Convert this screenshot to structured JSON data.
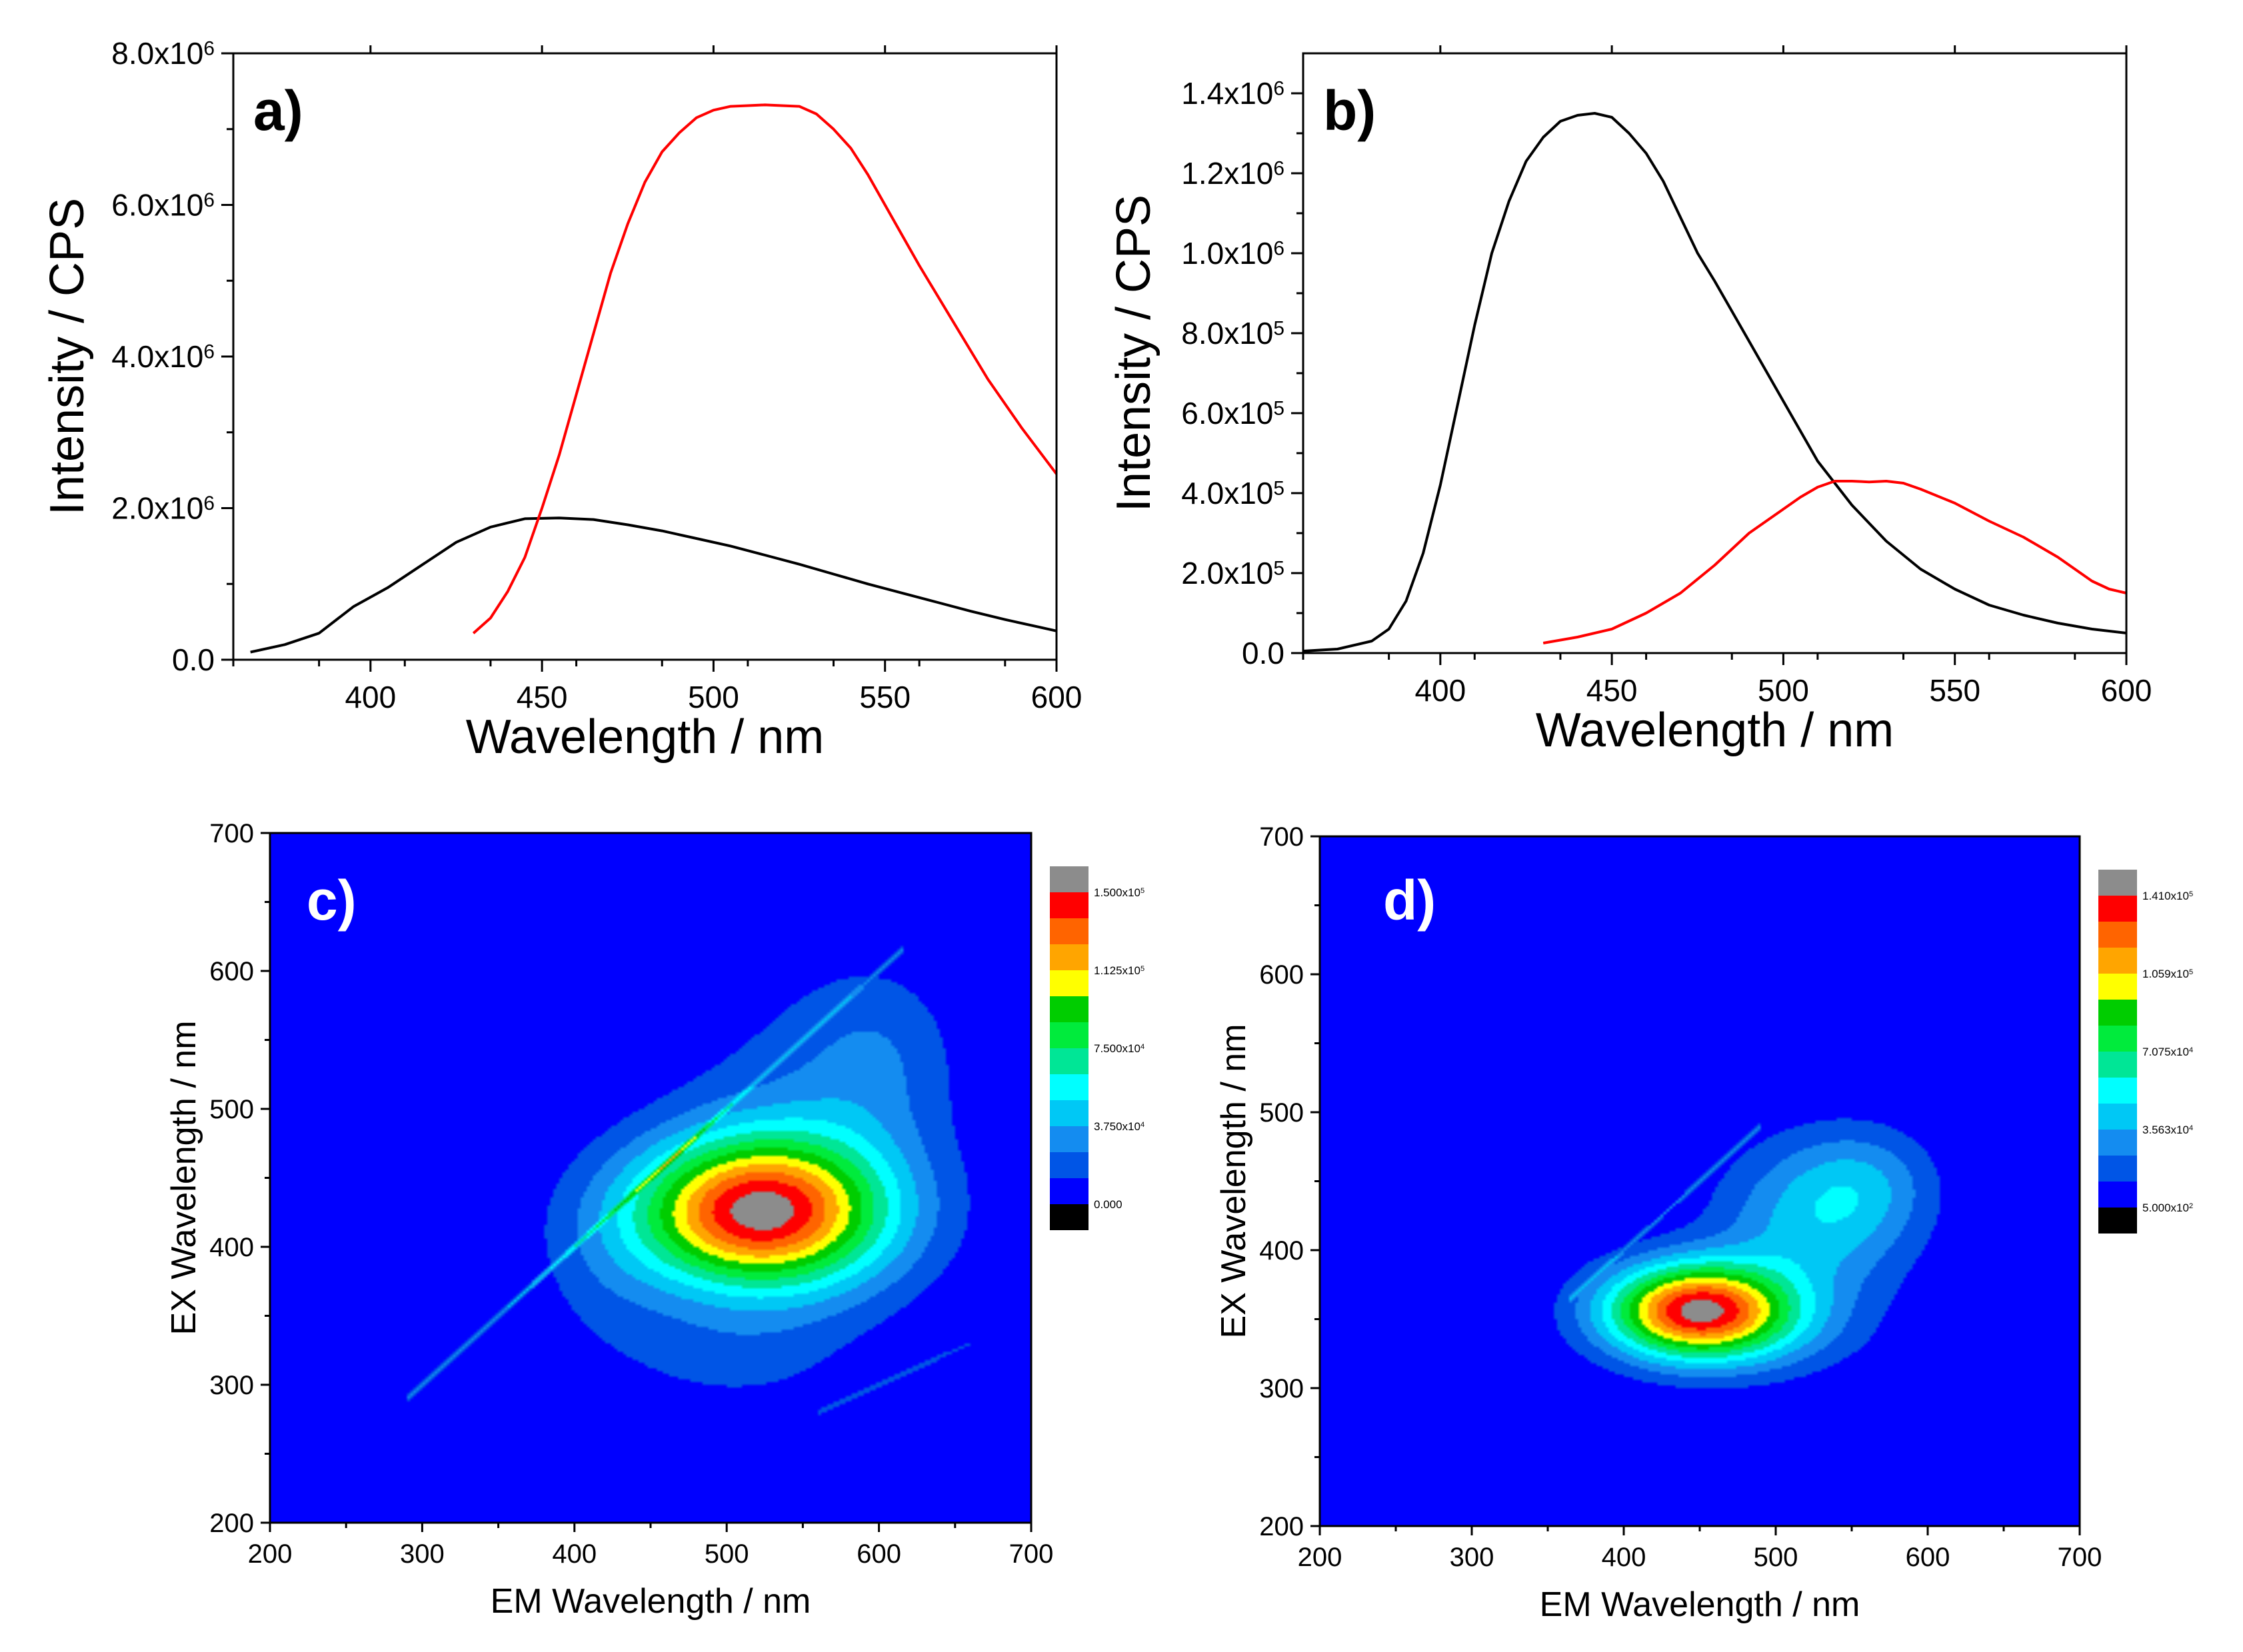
{
  "chart_data": [
    {
      "panel_label": "a)",
      "type": "line",
      "xlabel": "Wavelength / nm",
      "ylabel": "Intensity / CPS",
      "xlim": [
        360,
        600
      ],
      "ylim": [
        0,
        8000000
      ],
      "xticks": [
        400,
        450,
        500,
        550,
        600
      ],
      "xtick_labels": [
        "400",
        "450",
        "500",
        "550",
        "600"
      ],
      "yticks": [
        0,
        2000000,
        4000000,
        6000000,
        8000000
      ],
      "ytick_labels": [
        {
          "base": "0.0",
          "exp": ""
        },
        {
          "base": "2.0x10",
          "exp": "6"
        },
        {
          "base": "4.0x10",
          "exp": "6"
        },
        {
          "base": "6.0x10",
          "exp": "6"
        },
        {
          "base": "8.0x10",
          "exp": "6"
        }
      ],
      "series": [
        {
          "name": "black",
          "color": "#000000",
          "x": [
            365,
            375,
            385,
            395,
            405,
            415,
            425,
            435,
            445,
            455,
            465,
            475,
            485,
            495,
            505,
            515,
            525,
            535,
            545,
            555,
            565,
            575,
            585,
            595,
            600
          ],
          "y": [
            100000,
            200000,
            350000,
            700000,
            950000,
            1250000,
            1550000,
            1750000,
            1860000,
            1870000,
            1850000,
            1780000,
            1700000,
            1600000,
            1500000,
            1380000,
            1260000,
            1130000,
            1000000,
            880000,
            760000,
            640000,
            530000,
            430000,
            380000
          ]
        },
        {
          "name": "red",
          "color": "#ff0000",
          "x": [
            430,
            435,
            440,
            445,
            450,
            455,
            460,
            465,
            470,
            475,
            480,
            485,
            490,
            495,
            500,
            505,
            510,
            515,
            520,
            525,
            530,
            535,
            540,
            545,
            550,
            555,
            560,
            570,
            580,
            590,
            600
          ],
          "y": [
            350000,
            550000,
            900000,
            1350000,
            2000000,
            2700000,
            3500000,
            4300000,
            5100000,
            5750000,
            6300000,
            6700000,
            6950000,
            7150000,
            7250000,
            7300000,
            7310000,
            7320000,
            7310000,
            7300000,
            7200000,
            7000000,
            6750000,
            6400000,
            6000000,
            5600000,
            5200000,
            4450000,
            3700000,
            3050000,
            2450000
          ]
        }
      ]
    },
    {
      "panel_label": "b)",
      "type": "line",
      "xlabel": "Wavelength / nm",
      "ylabel": "Intensity / CPS",
      "xlim": [
        360,
        600
      ],
      "ylim": [
        0,
        1500000
      ],
      "xticks": [
        400,
        450,
        500,
        550,
        600
      ],
      "xtick_labels": [
        "400",
        "450",
        "500",
        "550",
        "600"
      ],
      "yticks": [
        0,
        200000,
        400000,
        600000,
        800000,
        1000000,
        1200000,
        1400000
      ],
      "ytick_labels": [
        {
          "base": "0.0",
          "exp": ""
        },
        {
          "base": "2.0x10",
          "exp": "5"
        },
        {
          "base": "4.0x10",
          "exp": "5"
        },
        {
          "base": "6.0x10",
          "exp": "5"
        },
        {
          "base": "8.0x10",
          "exp": "5"
        },
        {
          "base": "1.0x10",
          "exp": "6"
        },
        {
          "base": "1.2x10",
          "exp": "6"
        },
        {
          "base": "1.4x10",
          "exp": "6"
        }
      ],
      "series": [
        {
          "name": "black",
          "color": "#000000",
          "x": [
            360,
            370,
            380,
            385,
            390,
            395,
            400,
            405,
            410,
            415,
            420,
            425,
            430,
            435,
            440,
            445,
            450,
            455,
            460,
            465,
            470,
            475,
            480,
            490,
            500,
            510,
            520,
            530,
            540,
            550,
            560,
            570,
            580,
            590,
            600
          ],
          "y": [
            5000,
            10000,
            30000,
            60000,
            130000,
            250000,
            420000,
            620000,
            820000,
            1000000,
            1130000,
            1230000,
            1290000,
            1330000,
            1345000,
            1350000,
            1340000,
            1300000,
            1250000,
            1180000,
            1090000,
            1000000,
            930000,
            780000,
            630000,
            480000,
            370000,
            280000,
            210000,
            160000,
            120000,
            95000,
            75000,
            60000,
            50000
          ]
        },
        {
          "name": "red",
          "color": "#ff0000",
          "x": [
            430,
            440,
            450,
            460,
            470,
            480,
            490,
            500,
            505,
            510,
            515,
            520,
            525,
            530,
            535,
            540,
            550,
            560,
            570,
            580,
            585,
            590,
            595,
            600
          ],
          "y": [
            25000,
            40000,
            60000,
            100000,
            150000,
            220000,
            300000,
            360000,
            390000,
            415000,
            430000,
            430000,
            428000,
            430000,
            425000,
            410000,
            375000,
            330000,
            290000,
            240000,
            210000,
            180000,
            160000,
            150000
          ]
        }
      ]
    },
    {
      "panel_label": "c)",
      "type": "heatmap",
      "xlabel": "EM Wavelength / nm",
      "ylabel": "EX Wavelength / nm",
      "xlim": [
        200,
        700
      ],
      "ylim": [
        200,
        700
      ],
      "xticks": [
        200,
        300,
        400,
        500,
        600,
        700
      ],
      "xtick_labels": [
        "200",
        "300",
        "400",
        "500",
        "600",
        "700"
      ],
      "yticks": [
        200,
        300,
        400,
        500,
        600,
        700
      ],
      "ytick_labels": [
        "200",
        "300",
        "400",
        "500",
        "600",
        "700"
      ],
      "colorbar_labels": [
        {
          "value": 150000,
          "base": "1.500x10",
          "exp": "5"
        },
        {
          "value": 112500,
          "base": "1.125x10",
          "exp": "5"
        },
        {
          "value": 75000,
          "base": "7.500x10",
          "exp": "4"
        },
        {
          "value": 37500,
          "base": "3.750x10",
          "exp": "4"
        },
        {
          "value": 0,
          "base": "0.000",
          "exp": ""
        }
      ],
      "colorbar_range": [
        0,
        160000
      ],
      "background_value": 0,
      "components": [
        {
          "kind": "gaussian",
          "em": 520,
          "ex": 425,
          "amp": 152000,
          "sem": 58,
          "sex": 38
        },
        {
          "kind": "gaussian",
          "em": 555,
          "ex": 470,
          "amp": 24000,
          "sem": 60,
          "sex": 80
        },
        {
          "kind": "gaussian",
          "em": 600,
          "ex": 540,
          "amp": 17000,
          "sem": 35,
          "sex": 45
        },
        {
          "kind": "gaussian",
          "em": 500,
          "ex": 320,
          "amp": 14000,
          "sem": 55,
          "sex": 30
        },
        {
          "kind": "gaussian",
          "em": 420,
          "ex": 380,
          "amp": 12000,
          "sem": 35,
          "sex": 45
        },
        {
          "kind": "diagonal",
          "slope": 1.0,
          "offset": 0,
          "width": 4,
          "em_from": 290,
          "em_to": 615,
          "amps": [
            [
              290,
              30000
            ],
            [
              380,
              40000
            ],
            [
              440,
              45000
            ],
            [
              470,
              60000
            ],
            [
              510,
              28000
            ],
            [
              615,
              20000
            ]
          ]
        },
        {
          "kind": "diagonal",
          "slope": 0.5,
          "offset": 0,
          "width": 3,
          "em_from": 560,
          "em_to": 660,
          "amps": [
            [
              560,
              22000
            ],
            [
              660,
              22000
            ]
          ]
        }
      ]
    },
    {
      "panel_label": "d)",
      "type": "heatmap",
      "xlabel": "EM Wavelength / nm",
      "ylabel": "EX Wavelength / nm",
      "xlim": [
        200,
        700
      ],
      "ylim": [
        200,
        700
      ],
      "xticks": [
        200,
        300,
        400,
        500,
        600,
        700
      ],
      "xtick_labels": [
        "200",
        "300",
        "400",
        "500",
        "600",
        "700"
      ],
      "yticks": [
        200,
        300,
        400,
        500,
        600,
        700
      ],
      "ytick_labels": [
        "200",
        "300",
        "400",
        "500",
        "600",
        "700"
      ],
      "colorbar_labels": [
        {
          "value": 141000,
          "base": "1.410x10",
          "exp": "5"
        },
        {
          "value": 105900,
          "base": "1.059x10",
          "exp": "5"
        },
        {
          "value": 70750,
          "base": "7.075x10",
          "exp": "4"
        },
        {
          "value": 35630,
          "base": "3.563x10",
          "exp": "4"
        },
        {
          "value": 500,
          "base": "5.000x10",
          "exp": "2"
        }
      ],
      "colorbar_range": [
        500,
        151000
      ],
      "background_value": 0,
      "components": [
        {
          "kind": "gaussian",
          "em": 448,
          "ex": 357,
          "amp": 142000,
          "sem": 42,
          "sex": 24
        },
        {
          "kind": "gaussian",
          "em": 525,
          "ex": 420,
          "amp": 42000,
          "sem": 45,
          "sex": 42
        },
        {
          "kind": "gaussian",
          "em": 560,
          "ex": 450,
          "amp": 22000,
          "sem": 32,
          "sex": 28
        },
        {
          "kind": "gaussian",
          "em": 480,
          "ex": 340,
          "amp": 20000,
          "sem": 55,
          "sex": 25
        },
        {
          "kind": "diagonal",
          "slope": 1.0,
          "offset": 0,
          "width": 3,
          "em_from": 365,
          "em_to": 490,
          "amps": [
            [
              365,
              20000
            ],
            [
              490,
              20000
            ]
          ]
        }
      ]
    }
  ]
}
